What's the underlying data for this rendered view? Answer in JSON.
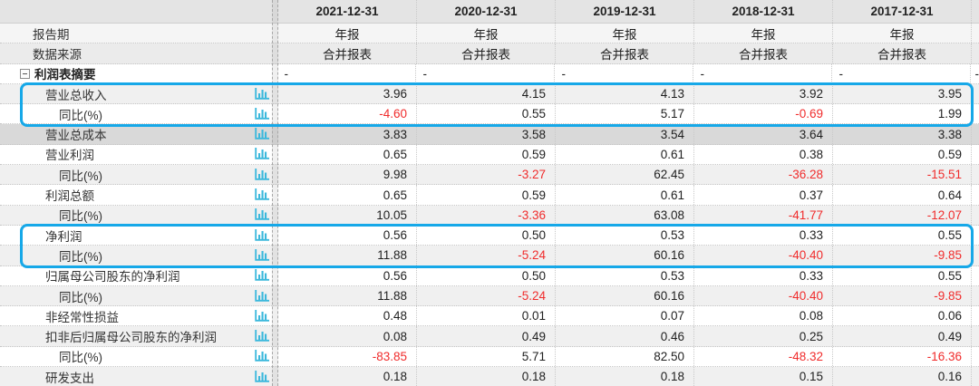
{
  "table": {
    "columns": [
      "2021-12-31",
      "2020-12-31",
      "2019-12-31",
      "2018-12-31",
      "2017-12-31"
    ],
    "meta_rows": [
      {
        "label": "报告期",
        "values": [
          "年报",
          "年报",
          "年报",
          "年报",
          "年报"
        ]
      },
      {
        "label": "数据来源",
        "values": [
          "合并报表",
          "合并报表",
          "合并报表",
          "合并报表",
          "合并报表"
        ]
      }
    ],
    "group_row": {
      "label": "利润表摘要",
      "values": [
        "-",
        "-",
        "-",
        "-",
        "-"
      ],
      "sliver": "-"
    },
    "rows": [
      {
        "label": "营业总收入",
        "indent": 1,
        "values": [
          "3.96",
          "4.15",
          "4.13",
          "3.92",
          "3.95"
        ]
      },
      {
        "label": "同比(%)",
        "indent": 2,
        "values": [
          "-4.60",
          "0.55",
          "5.17",
          "-0.69",
          "1.99"
        ]
      },
      {
        "label": "营业总成本",
        "indent": 1,
        "selected": true,
        "values": [
          "3.83",
          "3.58",
          "3.54",
          "3.64",
          "3.38"
        ]
      },
      {
        "label": "营业利润",
        "indent": 1,
        "values": [
          "0.65",
          "0.59",
          "0.61",
          "0.38",
          "0.59"
        ]
      },
      {
        "label": "同比(%)",
        "indent": 2,
        "values": [
          "9.98",
          "-3.27",
          "62.45",
          "-36.28",
          "-15.51"
        ]
      },
      {
        "label": "利润总额",
        "indent": 1,
        "values": [
          "0.65",
          "0.59",
          "0.61",
          "0.37",
          "0.64"
        ]
      },
      {
        "label": "同比(%)",
        "indent": 2,
        "values": [
          "10.05",
          "-3.36",
          "63.08",
          "-41.77",
          "-12.07"
        ]
      },
      {
        "label": "净利润",
        "indent": 1,
        "values": [
          "0.56",
          "0.50",
          "0.53",
          "0.33",
          "0.55"
        ]
      },
      {
        "label": "同比(%)",
        "indent": 2,
        "values": [
          "11.88",
          "-5.24",
          "60.16",
          "-40.40",
          "-9.85"
        ]
      },
      {
        "label": "归属母公司股东的净利润",
        "indent": 1,
        "values": [
          "0.56",
          "0.50",
          "0.53",
          "0.33",
          "0.55"
        ]
      },
      {
        "label": "同比(%)",
        "indent": 2,
        "values": [
          "11.88",
          "-5.24",
          "60.16",
          "-40.40",
          "-9.85"
        ]
      },
      {
        "label": "非经常性损益",
        "indent": 1,
        "values": [
          "0.48",
          "0.01",
          "0.07",
          "0.08",
          "0.06"
        ]
      },
      {
        "label": "扣非后归属母公司股东的净利润",
        "indent": 1,
        "values": [
          "0.08",
          "0.49",
          "0.46",
          "0.25",
          "0.49"
        ]
      },
      {
        "label": "同比(%)",
        "indent": 2,
        "values": [
          "-83.85",
          "5.71",
          "82.50",
          "-48.32",
          "-16.36"
        ]
      },
      {
        "label": "研发支出",
        "indent": 1,
        "values": [
          "0.18",
          "0.18",
          "0.18",
          "0.15",
          "0.16"
        ]
      }
    ],
    "highlight_boxes": [
      {
        "rows": [
          "营业总收入",
          "同比(%)"
        ]
      },
      {
        "rows": [
          "净利润",
          "同比(%)"
        ]
      }
    ]
  },
  "icons": {
    "row_chart_icon": "bar-chart-icon",
    "group_collapse_icon": "collapse-minus-icon"
  },
  "colors": {
    "highlight_border": "#16a8e8",
    "icon_cyan": "#3bb8dc",
    "negative_value": "#f02b2b",
    "selected_row": "#d9d9d9",
    "header_bg": "#e4e4e4",
    "stripe_gray": "#f0f0f0",
    "meta_row1_bg": "#f5f5f5",
    "meta_row2_bg": "#ebebeb"
  }
}
